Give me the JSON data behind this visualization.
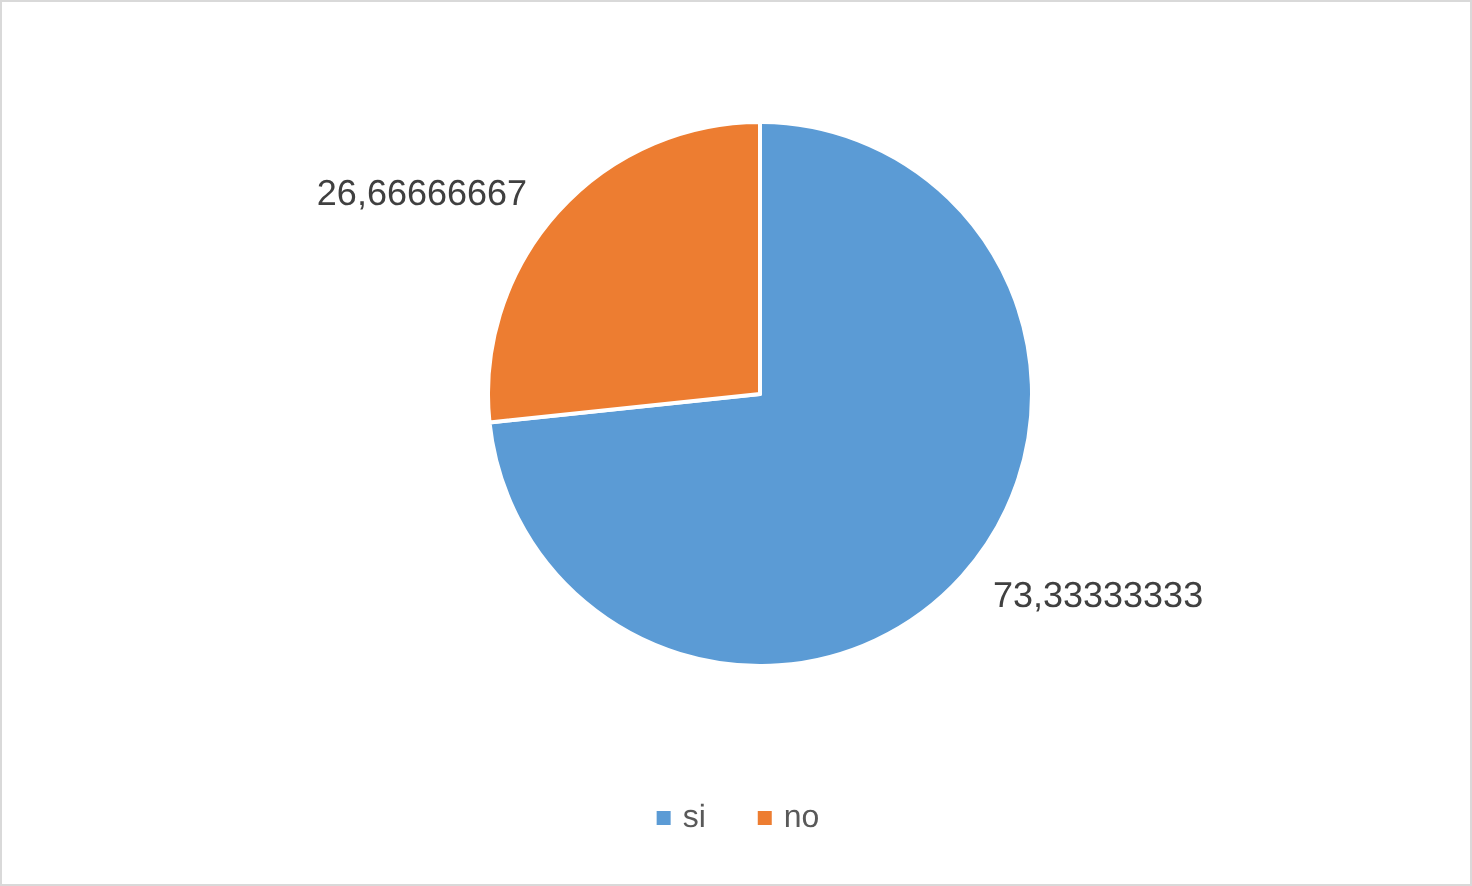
{
  "chart_data": {
    "type": "pie",
    "categories": [
      "si",
      "no"
    ],
    "values": [
      73.33333333,
      26.66666667
    ],
    "value_labels": [
      "73,33333333",
      "26,66666667"
    ],
    "colors": [
      "#5b9bd5",
      "#ed7d31"
    ],
    "legend": "bottom"
  }
}
